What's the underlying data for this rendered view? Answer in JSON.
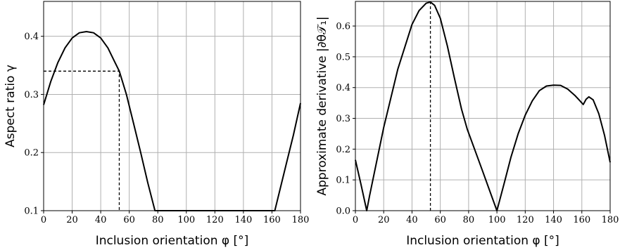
{
  "chart_data": [
    {
      "type": "line",
      "xlabel": "Inclusion orientation φ [°]",
      "ylabel": "Aspect ratio γ",
      "xlim": [
        0,
        180
      ],
      "ylim": [
        0.1,
        0.46
      ],
      "xticks": [
        "0",
        "20",
        "40",
        "60",
        "80",
        "100",
        "120",
        "140",
        "160",
        "180"
      ],
      "yticks": [
        "0.1",
        "0.2",
        "0.3",
        "0.4"
      ],
      "grid": true,
      "series": [
        {
          "x": [
            0,
            5,
            10,
            15,
            20,
            25,
            30,
            35,
            40,
            45,
            50,
            53,
            58,
            63,
            68,
            73,
            78,
            80,
            100,
            120,
            140,
            160,
            162,
            166,
            170,
            175,
            180
          ],
          "y": [
            0.282,
            0.322,
            0.355,
            0.38,
            0.397,
            0.406,
            0.408,
            0.406,
            0.397,
            0.38,
            0.355,
            0.34,
            0.3,
            0.25,
            0.2,
            0.148,
            0.1,
            0.1,
            0.1,
            0.1,
            0.1,
            0.1,
            0.1,
            0.14,
            0.18,
            0.23,
            0.285
          ]
        }
      ],
      "annotations": [
        {
          "type": "dashed-guide",
          "x": 53,
          "y": 0.34
        }
      ]
    },
    {
      "type": "line",
      "xlabel": "Inclusion orientation φ [°]",
      "ylabel": "Approximate derivative |∂θ𝒯₁|",
      "xlim": [
        0,
        180
      ],
      "ylim": [
        0,
        0.68
      ],
      "xticks": [
        "0",
        "20",
        "40",
        "60",
        "80",
        "100",
        "120",
        "140",
        "160",
        "180"
      ],
      "yticks": [
        "0.0",
        "0.1",
        "0.2",
        "0.3",
        "0.4",
        "0.5",
        "0.6"
      ],
      "grid": true,
      "series": [
        {
          "x": [
            0,
            4,
            8,
            10,
            20,
            30,
            40,
            45,
            50,
            53,
            56,
            60,
            65,
            70,
            75,
            79,
            85,
            90,
            95,
            100,
            105,
            110,
            115,
            120,
            125,
            130,
            135,
            140,
            145,
            150,
            155,
            158,
            161,
            163,
            165,
            168,
            172,
            176,
            180
          ],
          "y": [
            0.165,
            0.085,
            0.0,
            0.048,
            0.27,
            0.46,
            0.605,
            0.65,
            0.674,
            0.678,
            0.667,
            0.625,
            0.535,
            0.43,
            0.33,
            0.265,
            0.19,
            0.127,
            0.063,
            0.0,
            0.087,
            0.175,
            0.25,
            0.31,
            0.357,
            0.39,
            0.405,
            0.408,
            0.407,
            0.395,
            0.375,
            0.36,
            0.345,
            0.362,
            0.37,
            0.36,
            0.315,
            0.245,
            0.157
          ]
        }
      ],
      "annotations": [
        {
          "type": "dashed-vertical",
          "x": 53
        }
      ]
    }
  ]
}
